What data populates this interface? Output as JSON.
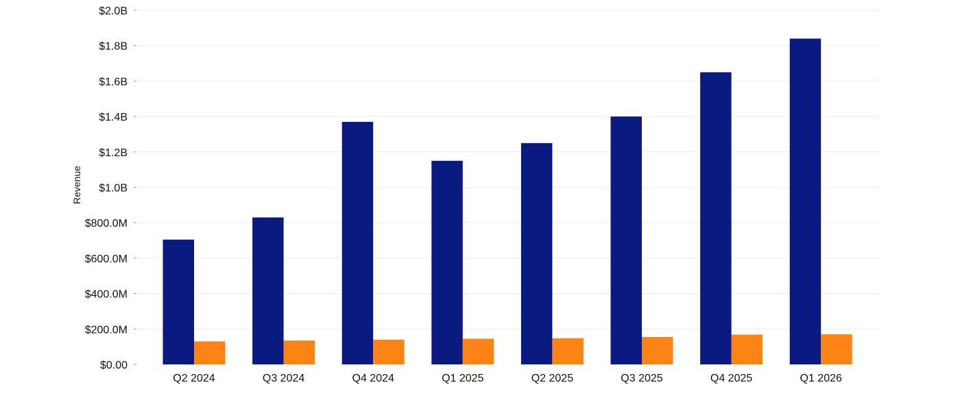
{
  "chart_data": {
    "type": "bar",
    "title": "",
    "xlabel": "",
    "ylabel": "Revenue",
    "ylim": [
      0,
      2000000000
    ],
    "grid": true,
    "y_ticks": [
      {
        "value": 0,
        "label": "$0.00"
      },
      {
        "value": 200000000,
        "label": "$200.0M"
      },
      {
        "value": 400000000,
        "label": "$400.0M"
      },
      {
        "value": 600000000,
        "label": "$600.0M"
      },
      {
        "value": 800000000,
        "label": "$800.0M"
      },
      {
        "value": 1000000000,
        "label": "$1.0B"
      },
      {
        "value": 1200000000,
        "label": "$1.2B"
      },
      {
        "value": 1400000000,
        "label": "$1.4B"
      },
      {
        "value": 1600000000,
        "label": "$1.6B"
      },
      {
        "value": 1800000000,
        "label": "$1.8B"
      },
      {
        "value": 2000000000,
        "label": "$2.0B"
      }
    ],
    "categories": [
      "Q2 2024",
      "Q3 2024",
      "Q4 2024",
      "Q1 2025",
      "Q2 2025",
      "Q3 2025",
      "Q4 2025",
      "Q1 2026"
    ],
    "series": [
      {
        "color": "#0b1a80",
        "values": [
          705000000,
          830000000,
          1370000000,
          1150000000,
          1250000000,
          1400000000,
          1650000000,
          1840000000
        ]
      },
      {
        "color": "#fd8315",
        "values": [
          130000000,
          135000000,
          140000000,
          145000000,
          148000000,
          155000000,
          168000000,
          170000000
        ]
      }
    ]
  }
}
